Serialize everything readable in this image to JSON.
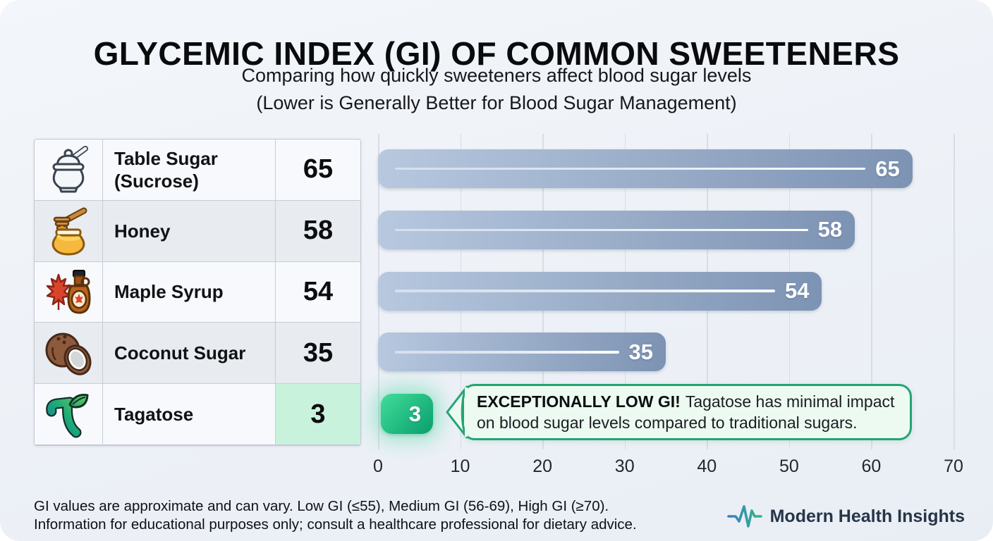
{
  "page": {
    "title": "GLYCEMIC INDEX (GI) OF COMMON SWEETENERS",
    "subtitle_line1": "Comparing how quickly sweeteners affect blood sugar levels",
    "subtitle_line2": "(Lower is Generally Better for Blood Sugar Management)"
  },
  "table": {
    "rows": [
      {
        "icon": "sugar-bowl-icon",
        "name": "Table Sugar (Sucrose)",
        "value": "65",
        "highlight": false
      },
      {
        "icon": "honey-jar-icon",
        "name": "Honey",
        "value": "58",
        "highlight": false
      },
      {
        "icon": "maple-syrup-icon",
        "name": "Maple Syrup",
        "value": "54",
        "highlight": false
      },
      {
        "icon": "coconut-icon",
        "name": "Coconut Sugar",
        "value": "35",
        "highlight": false
      },
      {
        "icon": "tagatose-logo-icon",
        "name": "Tagatose",
        "value": "3",
        "highlight": true
      }
    ]
  },
  "chart_data": {
    "type": "bar",
    "orientation": "horizontal",
    "title": "Glycemic Index (GI) of Common Sweeteners",
    "categories": [
      "Table Sugar (Sucrose)",
      "Honey",
      "Maple Syrup",
      "Coconut Sugar",
      "Tagatose"
    ],
    "values": [
      65,
      58,
      54,
      35,
      3
    ],
    "xlim": [
      0,
      70
    ],
    "x_ticks": [
      0,
      10,
      20,
      30,
      40,
      50,
      60,
      70
    ],
    "grid": true,
    "legend": "none",
    "highlight_index": 4,
    "bar_color_start": "#b7c8df",
    "bar_color_end": "#7d93b3",
    "highlight_color_start": "#41dd9b",
    "highlight_color_end": "#089e6c",
    "value_label_color": "#ffffff"
  },
  "callout": {
    "bold_text": "EXCEPTIONALLY LOW GI!",
    "body_text": "Tagatose has minimal impact on blood sugar levels compared to traditional sugars.",
    "border_color": "#25a473",
    "bg_color": "#ecfaf2"
  },
  "footer": {
    "line1": "GI values are approximate and can vary. Low GI (≤55), Medium GI (56-69), High GI (≥70).",
    "line2": "Information for educational purposes only; consult a healthcare professional for dietary advice.",
    "brand": "Modern Health Insights"
  }
}
